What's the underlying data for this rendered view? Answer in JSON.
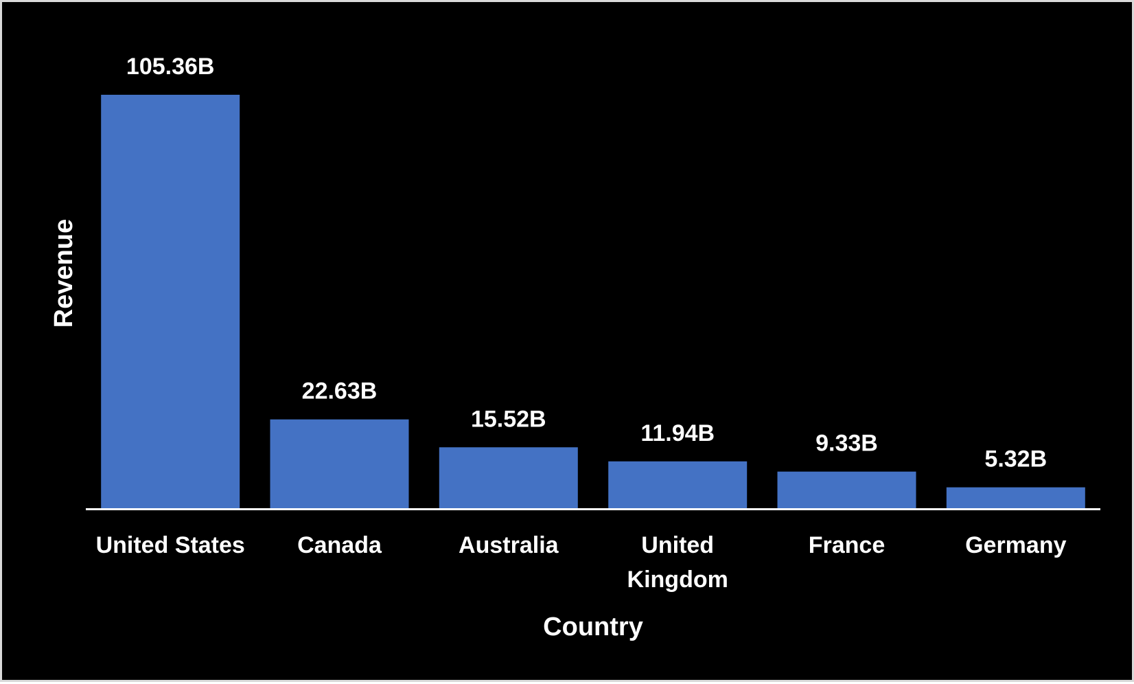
{
  "chart_data": {
    "type": "bar",
    "title": "",
    "xlabel": "Country",
    "ylabel": "Revenue",
    "categories": [
      "United States",
      "Canada",
      "Australia",
      "United Kingdom",
      "France",
      "Germany"
    ],
    "tick_lines": [
      [
        "United States"
      ],
      [
        "Canada"
      ],
      [
        "Australia"
      ],
      [
        "United",
        "Kingdom"
      ],
      [
        "France"
      ],
      [
        "Germany"
      ]
    ],
    "values": [
      105.36,
      22.63,
      15.52,
      11.94,
      9.33,
      5.32
    ],
    "value_labels": [
      "105.36B",
      "22.63B",
      "15.52B",
      "11.94B",
      "9.33B",
      "5.32B"
    ],
    "unit": "B",
    "ylim": [
      0,
      105.36
    ],
    "grid": false,
    "legend": "none",
    "colors": {
      "bar": "#4472c4",
      "background": "#000000",
      "text": "#ffffff",
      "axis_line": "#ffffff",
      "frame": "#d9d9d9"
    }
  }
}
